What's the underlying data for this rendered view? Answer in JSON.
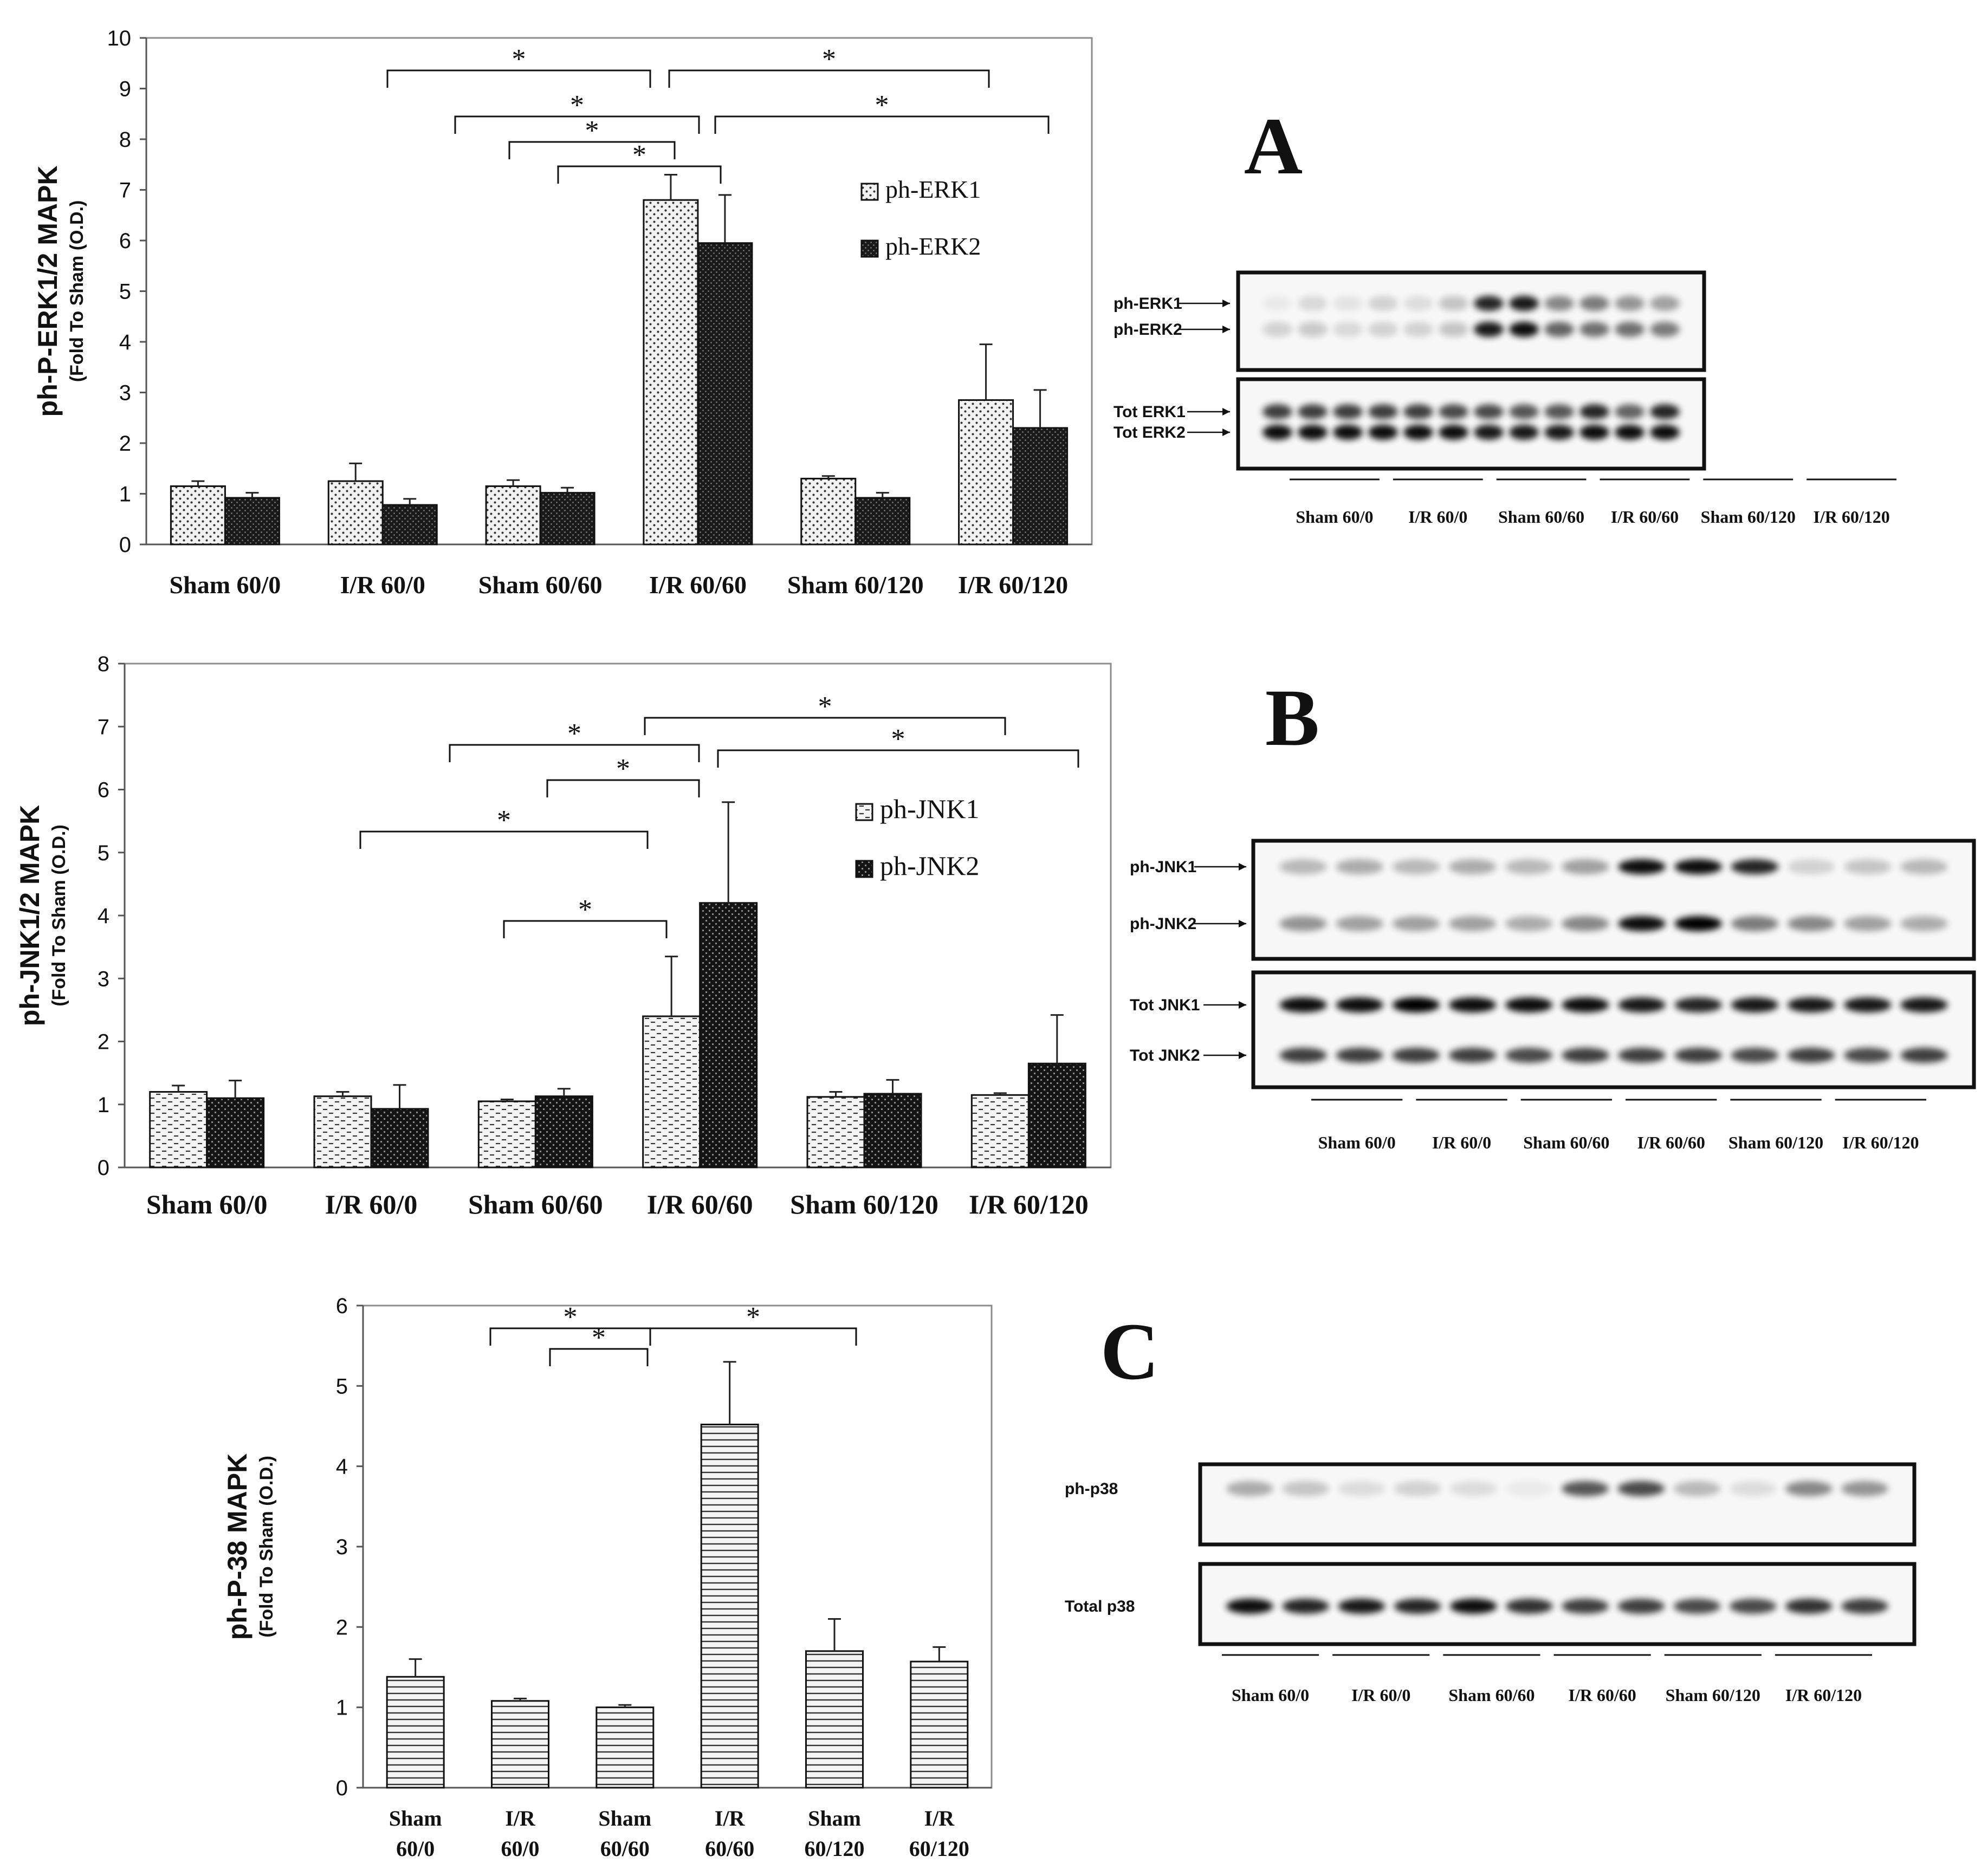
{
  "panels": [
    {
      "letter": "A",
      "chart_data": {
        "type": "bar",
        "title": "",
        "ylabel_main": "ph-P-ERK1/2 MAPK",
        "ylabel_sub": "(Fold To Sham (O.D.)",
        "xlabel": "",
        "categories": [
          "Sham 60/0",
          "I/R 60/0",
          "Sham 60/60",
          "I/R 60/60",
          "Sham 60/120",
          "I/R 60/120"
        ],
        "series": [
          {
            "name": "ph-ERK1",
            "values": [
              1.15,
              1.25,
              1.15,
              6.8,
              1.3,
              2.85
            ],
            "errors": [
              0.1,
              0.35,
              0.12,
              0.5,
              0.05,
              1.1
            ]
          },
          {
            "name": "ph-ERK2",
            "values": [
              0.92,
              0.78,
              1.02,
              5.95,
              0.92,
              2.3
            ],
            "errors": [
              0.1,
              0.12,
              0.1,
              0.95,
              0.1,
              0.75
            ]
          }
        ],
        "ylim": [
          0,
          10
        ],
        "yticks": [
          "0",
          "1",
          "2",
          "3",
          "4",
          "5",
          "6",
          "7",
          "8",
          "9",
          "10"
        ],
        "significance_mark": "*",
        "legend_position": "top-right"
      },
      "blot": {
        "bands": [
          "ph-ERK1",
          "ph-ERK2",
          "Tot ERK1",
          "Tot ERK2"
        ],
        "lanes": [
          "Sham 60/0",
          "I/R 60/0",
          "Sham 60/60",
          "I/R 60/60",
          "Sham 60/120",
          "I/R 60/120"
        ]
      }
    },
    {
      "letter": "B",
      "chart_data": {
        "type": "bar",
        "title": "",
        "ylabel_main": "ph-JNK1/2 MAPK",
        "ylabel_sub": "(Fold To Sham (O.D.)",
        "xlabel": "",
        "categories": [
          "Sham 60/0",
          "I/R 60/0",
          "Sham 60/60",
          "I/R 60/60",
          "Sham 60/120",
          "I/R 60/120"
        ],
        "series": [
          {
            "name": "ph-JNK1",
            "values": [
              1.2,
              1.13,
              1.05,
              2.4,
              1.12,
              1.15
            ],
            "errors": [
              0.1,
              0.07,
              0.03,
              0.95,
              0.08,
              0.03
            ]
          },
          {
            "name": "ph-JNK2",
            "values": [
              1.1,
              0.93,
              1.13,
              4.2,
              1.17,
              1.65
            ],
            "errors": [
              0.28,
              0.38,
              0.12,
              1.6,
              0.22,
              0.77
            ]
          }
        ],
        "ylim": [
          0,
          8
        ],
        "yticks": [
          "0",
          "1",
          "2",
          "3",
          "4",
          "5",
          "6",
          "7",
          "8"
        ],
        "significance_mark": "*",
        "legend_position": "top-right"
      },
      "blot": {
        "bands": [
          "ph-JNK1",
          "ph-JNK2",
          "Tot JNK1",
          "Tot JNK2"
        ],
        "lanes": [
          "Sham 60/0",
          "I/R 60/0",
          "Sham 60/60",
          "I/R 60/60",
          "Sham 60/120",
          "I/R 60/120"
        ]
      }
    },
    {
      "letter": "C",
      "chart_data": {
        "type": "bar",
        "title": "",
        "ylabel_main": "ph-P-38 MAPK",
        "ylabel_sub": "(Fold To Sham (O.D.)",
        "xlabel": "",
        "categories": [
          "Sham 60/0",
          "I/R 60/0",
          "Sham 60/60",
          "I/R 60/60",
          "Sham 60/120",
          "I/R 60/120"
        ],
        "category_lines": [
          [
            "Sham",
            "60/0"
          ],
          [
            "I/R",
            "60/0"
          ],
          [
            "Sham",
            "60/60"
          ],
          [
            "I/R",
            "60/60"
          ],
          [
            "Sham",
            "60/120"
          ],
          [
            "I/R",
            "60/120"
          ]
        ],
        "series": [
          {
            "name": "ph-P-38",
            "values": [
              1.38,
              1.08,
              1.0,
              4.52,
              1.7,
              1.57
            ],
            "errors": [
              0.22,
              0.03,
              0.03,
              0.78,
              0.4,
              0.18
            ]
          }
        ],
        "ylim": [
          0,
          6
        ],
        "yticks": [
          "0",
          "1",
          "2",
          "3",
          "4",
          "5",
          "6"
        ],
        "significance_mark": "*",
        "legend_position": "none"
      },
      "blot": {
        "bands": [
          "ph-p38",
          "Total p38"
        ],
        "lanes": [
          "Sham 60/0",
          "I/R 60/0",
          "Sham 60/60",
          "I/R 60/60",
          "Sham 60/120",
          "I/R 60/120"
        ]
      }
    }
  ]
}
